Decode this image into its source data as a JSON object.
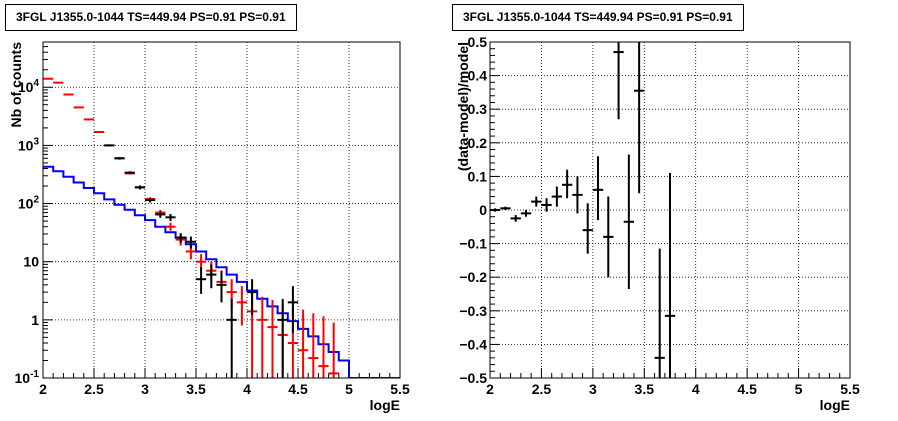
{
  "chart_data": [
    {
      "type": "line",
      "title": "3FGL J1355.0-1044 TS=449.94 PS=0.91 PS=0.91",
      "xlabel": "logE",
      "ylabel": "Nb of counts",
      "xlim": [
        2,
        5.5
      ],
      "ylim": [
        0.1,
        60000
      ],
      "yscale": "log",
      "grid": true,
      "x_ticks": [
        "2",
        "2.5",
        "3",
        "3.5",
        "4",
        "4.5",
        "5",
        "5.5"
      ],
      "y_ticks": [
        {
          "value": 0.1,
          "base": "10",
          "exp": "-1",
          "label": "10^-1"
        },
        {
          "value": 1,
          "base": "1",
          "exp": "",
          "label": "1"
        },
        {
          "value": 10,
          "base": "10",
          "exp": "",
          "label": "10"
        },
        {
          "value": 100,
          "base": "10",
          "exp": "2",
          "label": "10^2"
        },
        {
          "value": 1000,
          "base": "10",
          "exp": "3",
          "label": "10^3"
        },
        {
          "value": 10000,
          "base": "10",
          "exp": "4",
          "label": "10^4"
        }
      ],
      "bin_edges": [
        2.0,
        2.1,
        2.2,
        2.3,
        2.4,
        2.5,
        2.6,
        2.7,
        2.8,
        2.9,
        3.0,
        3.1,
        3.2,
        3.3,
        3.4,
        3.5,
        3.6,
        3.7,
        3.8,
        3.9,
        4.0,
        4.1,
        4.2,
        4.3,
        4.4,
        4.5,
        4.6,
        4.7,
        4.8,
        4.9,
        5.0,
        5.1,
        5.2,
        5.3,
        5.4,
        5.5
      ],
      "series": [
        {
          "kind": "step",
          "color": "#0000ff",
          "values": [
            430,
            360,
            290,
            230,
            185,
            150,
            118,
            95,
            78,
            63,
            52,
            40,
            32,
            26,
            20,
            15,
            11,
            8,
            6,
            4.5,
            3.2,
            2.3,
            1.7,
            1.3,
            0.95,
            0.7,
            0.52,
            0.38,
            0.28,
            0.2,
            0.1,
            0.1,
            0.1,
            0.1,
            0.1
          ]
        },
        {
          "kind": "errorbar",
          "color": "#ff0000",
          "points": [
            {
              "x": 2.05,
              "y": 14000,
              "lo": 14000,
              "hi": 14000
            },
            {
              "x": 2.15,
              "y": 12000,
              "lo": 12000,
              "hi": 12000
            },
            {
              "x": 2.25,
              "y": 7500,
              "lo": 7500,
              "hi": 7500
            },
            {
              "x": 2.35,
              "y": 4500,
              "lo": 4500,
              "hi": 4500
            },
            {
              "x": 2.45,
              "y": 2800,
              "lo": 2800,
              "hi": 2800
            },
            {
              "x": 2.55,
              "y": 1700,
              "lo": 1700,
              "hi": 1700
            },
            {
              "x": 2.65,
              "y": 1000,
              "lo": 980,
              "hi": 1020
            },
            {
              "x": 2.75,
              "y": 600,
              "lo": 585,
              "hi": 615
            },
            {
              "x": 2.85,
              "y": 330,
              "lo": 320,
              "hi": 340
            },
            {
              "x": 2.95,
              "y": 190,
              "lo": 180,
              "hi": 200
            },
            {
              "x": 3.05,
              "y": 120,
              "lo": 112,
              "hi": 128
            },
            {
              "x": 3.15,
              "y": 70,
              "lo": 62,
              "hi": 78
            },
            {
              "x": 3.25,
              "y": 40,
              "lo": 34,
              "hi": 47
            },
            {
              "x": 3.35,
              "y": 24,
              "lo": 19,
              "hi": 29
            },
            {
              "x": 3.45,
              "y": 15,
              "lo": 11,
              "hi": 19
            },
            {
              "x": 3.55,
              "y": 10,
              "lo": 7,
              "hi": 13.5
            },
            {
              "x": 3.65,
              "y": 7,
              "lo": 4.5,
              "hi": 10
            },
            {
              "x": 3.75,
              "y": 4.5,
              "lo": 2.5,
              "hi": 7
            },
            {
              "x": 3.85,
              "y": 3,
              "lo": 1.5,
              "hi": 5
            },
            {
              "x": 3.95,
              "y": 2,
              "lo": 0.8,
              "hi": 3.8
            },
            {
              "x": 4.05,
              "y": 1.4,
              "lo": 0.1,
              "hi": 3
            },
            {
              "x": 4.15,
              "y": 1,
              "lo": 0.1,
              "hi": 2.5
            },
            {
              "x": 4.25,
              "y": 0.75,
              "lo": 0.1,
              "hi": 2.2
            },
            {
              "x": 4.35,
              "y": 0.55,
              "lo": 0.1,
              "hi": 1.9
            },
            {
              "x": 4.45,
              "y": 0.4,
              "lo": 0.1,
              "hi": 1.6
            },
            {
              "x": 4.55,
              "y": 0.3,
              "lo": 0.1,
              "hi": 1.5
            },
            {
              "x": 4.65,
              "y": 0.22,
              "lo": 0.1,
              "hi": 1.3
            },
            {
              "x": 4.75,
              "y": 0.16,
              "lo": 0.1,
              "hi": 1.15
            },
            {
              "x": 4.85,
              "y": 0.12,
              "lo": 0.1,
              "hi": 0.9
            }
          ]
        },
        {
          "kind": "errorbar",
          "color": "#000000",
          "points": [
            {
              "x": 2.65,
              "y": 1000,
              "lo": 960,
              "hi": 1040
            },
            {
              "x": 2.75,
              "y": 600,
              "lo": 570,
              "hi": 630
            },
            {
              "x": 2.85,
              "y": 340,
              "lo": 320,
              "hi": 360
            },
            {
              "x": 2.95,
              "y": 190,
              "lo": 175,
              "hi": 205
            },
            {
              "x": 3.05,
              "y": 115,
              "lo": 104,
              "hi": 126
            },
            {
              "x": 3.15,
              "y": 65,
              "lo": 57,
              "hi": 73
            },
            {
              "x": 3.25,
              "y": 58,
              "lo": 50,
              "hi": 66
            },
            {
              "x": 3.35,
              "y": 26,
              "lo": 21,
              "hi": 31
            },
            {
              "x": 3.45,
              "y": 22,
              "lo": 17,
              "hi": 27
            },
            {
              "x": 3.55,
              "y": 5,
              "lo": 2.8,
              "hi": 8
            },
            {
              "x": 3.65,
              "y": 6,
              "lo": 3.5,
              "hi": 9
            },
            {
              "x": 3.75,
              "y": 4,
              "lo": 2,
              "hi": 7
            },
            {
              "x": 3.85,
              "y": 1,
              "lo": 0.1,
              "hi": 2.3
            },
            {
              "x": 4.05,
              "y": 3,
              "lo": 1.2,
              "hi": 5
            },
            {
              "x": 4.35,
              "y": 1,
              "lo": 0.1,
              "hi": 2.3
            },
            {
              "x": 4.45,
              "y": 2,
              "lo": 0.6,
              "hi": 3.8
            }
          ]
        }
      ]
    },
    {
      "type": "line",
      "title": "3FGL J1355.0-1044 TS=449.94 PS=0.91 PS=0.91",
      "xlabel": "logE",
      "ylabel": "(data-model)/model",
      "xlim": [
        2,
        5.5
      ],
      "ylim": [
        -0.5,
        0.5
      ],
      "grid": true,
      "x_ticks": [
        "2",
        "2.5",
        "3",
        "3.5",
        "4",
        "4.5",
        "5",
        "5.5"
      ],
      "y_ticks": [
        "-0.5",
        "-0.4",
        "-0.3",
        "-0.2",
        "-0.1",
        "0",
        "0.1",
        "0.2",
        "0.3",
        "0.4",
        "0.5"
      ],
      "y_tick_values": [
        -0.5,
        -0.4,
        -0.3,
        -0.2,
        -0.1,
        0,
        0.1,
        0.2,
        0.3,
        0.4,
        0.5
      ],
      "series": [
        {
          "kind": "errorbar",
          "color": "#000000",
          "points": [
            {
              "x": 2.05,
              "y": 0.0,
              "lo": -0.005,
              "hi": 0.005
            },
            {
              "x": 2.15,
              "y": 0.005,
              "lo": 0.0,
              "hi": 0.01
            },
            {
              "x": 2.25,
              "y": -0.025,
              "lo": -0.035,
              "hi": -0.015
            },
            {
              "x": 2.35,
              "y": -0.01,
              "lo": -0.02,
              "hi": 0.0
            },
            {
              "x": 2.45,
              "y": 0.025,
              "lo": 0.01,
              "hi": 0.04
            },
            {
              "x": 2.55,
              "y": 0.015,
              "lo": -0.005,
              "hi": 0.035
            },
            {
              "x": 2.65,
              "y": 0.04,
              "lo": 0.01,
              "hi": 0.07
            },
            {
              "x": 2.75,
              "y": 0.075,
              "lo": 0.035,
              "hi": 0.12
            },
            {
              "x": 2.85,
              "y": 0.045,
              "lo": -0.01,
              "hi": 0.1
            },
            {
              "x": 2.95,
              "y": -0.06,
              "lo": -0.13,
              "hi": 0.02
            },
            {
              "x": 3.05,
              "y": 0.06,
              "lo": -0.03,
              "hi": 0.16
            },
            {
              "x": 3.15,
              "y": -0.08,
              "lo": -0.2,
              "hi": 0.04
            },
            {
              "x": 3.25,
              "y": 0.47,
              "lo": 0.27,
              "hi": 0.5
            },
            {
              "x": 3.35,
              "y": -0.035,
              "lo": -0.235,
              "hi": 0.165
            },
            {
              "x": 3.45,
              "y": 0.355,
              "lo": 0.05,
              "hi": 0.5
            },
            {
              "x": 3.65,
              "y": -0.44,
              "lo": -0.5,
              "hi": -0.115
            },
            {
              "x": 3.75,
              "y": -0.315,
              "lo": -0.5,
              "hi": 0.11
            }
          ]
        }
      ]
    }
  ]
}
